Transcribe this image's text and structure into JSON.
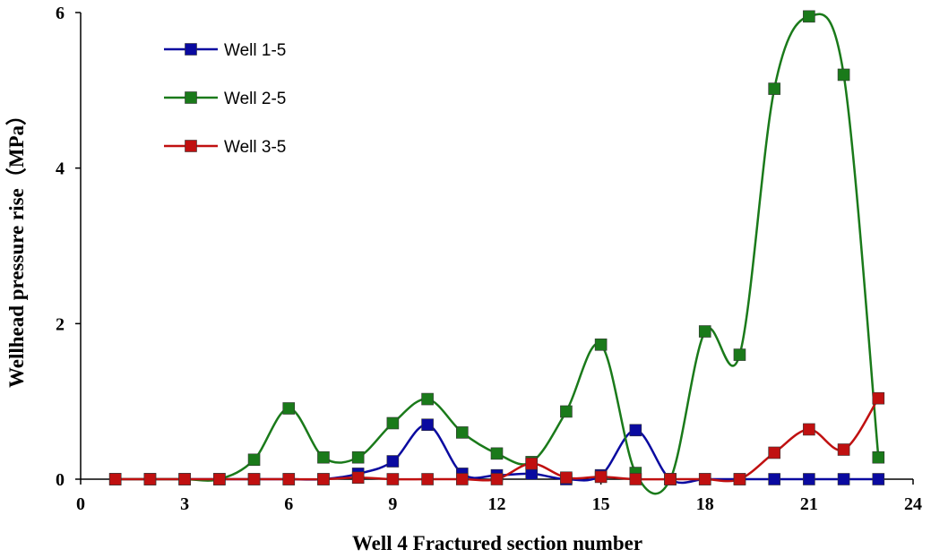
{
  "chart_data": {
    "type": "line",
    "xlabel": "Well 4 Fractured section number",
    "ylabel": "Wellhead pressure rise（MPa）",
    "xlim": [
      0,
      24
    ],
    "ylim": [
      0,
      6
    ],
    "xticks": [
      "0",
      "3",
      "6",
      "9",
      "12",
      "15",
      "18",
      "21",
      "24"
    ],
    "yticks": [
      "0",
      "2",
      "4",
      "6"
    ],
    "legend_position": "top-left",
    "series": [
      {
        "name": "Well 1-5",
        "color": "#0a0aa0",
        "x": [
          1,
          2,
          3,
          4,
          5,
          6,
          7,
          8,
          9,
          10,
          11,
          12,
          13,
          14,
          15,
          16,
          17,
          18,
          19,
          20,
          21,
          22,
          23
        ],
        "values": [
          0,
          0,
          0,
          0,
          0,
          0,
          0,
          0.07,
          0.23,
          0.7,
          0.07,
          0.05,
          0.07,
          0,
          0.05,
          0.63,
          0,
          0,
          0,
          0,
          0,
          0,
          0
        ]
      },
      {
        "name": "Well 2-5",
        "color": "#1a7a1a",
        "x": [
          1,
          2,
          3,
          4,
          5,
          6,
          7,
          8,
          9,
          10,
          11,
          12,
          13,
          14,
          15,
          16,
          17,
          18,
          19,
          20,
          21,
          22,
          23
        ],
        "values": [
          0,
          0,
          0,
          0,
          0.25,
          0.91,
          0.28,
          0.28,
          0.72,
          1.03,
          0.6,
          0.33,
          0.22,
          0.87,
          1.73,
          0.08,
          0,
          1.9,
          1.6,
          5.02,
          5.95,
          5.2,
          0.28
        ]
      },
      {
        "name": "Well 3-5",
        "color": "#c01010",
        "x": [
          1,
          2,
          3,
          4,
          5,
          6,
          7,
          8,
          9,
          10,
          11,
          12,
          13,
          14,
          15,
          16,
          17,
          18,
          19,
          20,
          21,
          22,
          23
        ],
        "values": [
          0,
          0,
          0,
          0,
          0,
          0,
          0,
          0.02,
          0,
          0,
          0,
          0,
          0.2,
          0.02,
          0.03,
          0,
          0,
          0,
          0,
          0.34,
          0.64,
          0.38,
          1.04
        ]
      }
    ]
  }
}
